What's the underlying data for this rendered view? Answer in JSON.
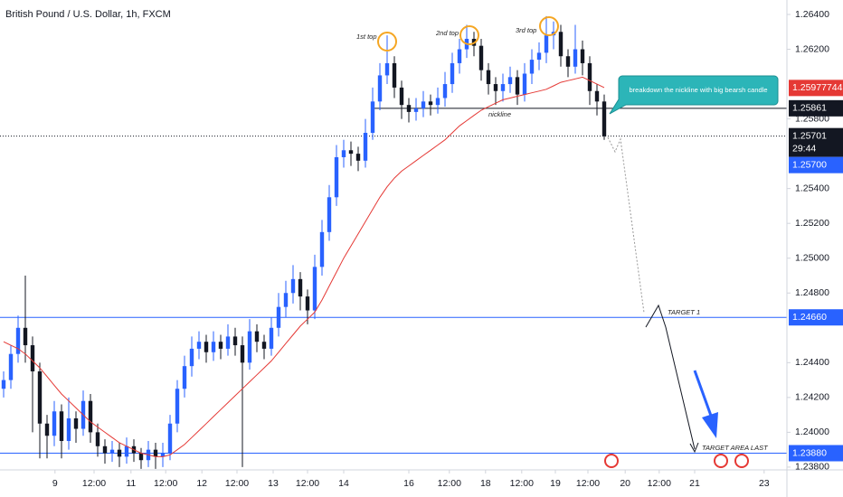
{
  "chart_data": {
    "type": "candlestick",
    "title": "British Pound / U.S. Dollar, 1h, FXCM",
    "colors": {
      "up": "#2962ff",
      "down": "#131722"
    },
    "open": [
      1.2425,
      1.243,
      1.2445,
      1.246,
      1.245,
      1.2435,
      1.2405,
      1.2398,
      1.2412,
      1.2395,
      1.2408,
      1.2402,
      1.2418,
      1.24,
      1.2392,
      1.2388,
      1.239,
      1.2386,
      1.2392,
      1.2388,
      1.2384,
      1.239,
      1.2386,
      1.2388,
      1.2405,
      1.2425,
      1.2438,
      1.2448,
      1.2452,
      1.2446,
      1.2452,
      1.2448,
      1.2455,
      1.245,
      1.244,
      1.2458,
      1.2452,
      1.2448,
      1.246,
      1.2472,
      1.248,
      1.2488,
      1.2478,
      1.247,
      1.2495,
      1.2515,
      1.2535,
      1.2558,
      1.2562,
      1.256,
      1.2556,
      1.2572,
      1.259,
      1.2605,
      1.2612,
      1.2598,
      1.2588,
      1.2584,
      1.2586,
      1.259,
      1.2588,
      1.2592,
      1.26,
      1.2612,
      1.262,
      1.2626,
      1.2622,
      1.2608,
      1.26,
      1.2596,
      1.26,
      1.2604,
      1.2594,
      1.2606,
      1.2614,
      1.2618,
      1.2628,
      1.263,
      1.2616,
      1.261,
      1.262,
      1.2612,
      1.2596,
      1.259
    ],
    "high": [
      1.2435,
      1.245,
      1.2467,
      1.249,
      1.2455,
      1.244,
      1.241,
      1.2418,
      1.2416,
      1.242,
      1.2412,
      1.2424,
      1.2422,
      1.2405,
      1.2396,
      1.2395,
      1.2394,
      1.2397,
      1.2396,
      1.2391,
      1.2395,
      1.2394,
      1.2394,
      1.241,
      1.243,
      1.2444,
      1.2455,
      1.2458,
      1.2456,
      1.2458,
      1.2456,
      1.2462,
      1.246,
      1.2455,
      1.2465,
      1.2462,
      1.2456,
      1.2466,
      1.248,
      1.2487,
      1.2496,
      1.2492,
      1.2482,
      1.2502,
      1.2522,
      1.2542,
      1.2565,
      1.2568,
      1.2567,
      1.2564,
      1.258,
      1.2598,
      1.2612,
      1.2628,
      1.2616,
      1.2602,
      1.2592,
      1.2592,
      1.2596,
      1.2594,
      1.2598,
      1.2607,
      1.2618,
      1.2626,
      1.2634,
      1.263,
      1.2626,
      1.2612,
      1.2604,
      1.2606,
      1.261,
      1.2608,
      1.2612,
      1.262,
      1.2624,
      1.2639,
      1.2636,
      1.2634,
      1.262,
      1.2634,
      1.2625,
      1.2616,
      1.26,
      1.2594
    ],
    "low": [
      1.242,
      1.2425,
      1.244,
      1.244,
      1.24,
      1.2385,
      1.2385,
      1.2392,
      1.2385,
      1.239,
      1.2394,
      1.2398,
      1.2394,
      1.2386,
      1.2382,
      1.2383,
      1.238,
      1.2382,
      1.2383,
      1.2379,
      1.238,
      1.2379,
      1.238,
      1.2384,
      1.24,
      1.242,
      1.2432,
      1.2442,
      1.244,
      1.2441,
      1.2442,
      1.2444,
      1.2444,
      1.238,
      1.2436,
      1.2446,
      1.2442,
      1.2444,
      1.2455,
      1.2466,
      1.2474,
      1.247,
      1.2462,
      1.2465,
      1.249,
      1.251,
      1.253,
      1.2552,
      1.2553,
      1.255,
      1.2552,
      1.2568,
      1.2585,
      1.26,
      1.2592,
      1.258,
      1.2578,
      1.2579,
      1.2581,
      1.2582,
      1.2583,
      1.2587,
      1.2595,
      1.2606,
      1.2615,
      1.2616,
      1.2602,
      1.2594,
      1.2588,
      1.259,
      1.2595,
      1.2588,
      1.259,
      1.26,
      1.2608,
      1.2612,
      1.262,
      1.261,
      1.2604,
      1.2606,
      1.2605,
      1.2588,
      1.2582,
      1.2568
    ],
    "close": [
      1.243,
      1.2445,
      1.246,
      1.245,
      1.2435,
      1.2405,
      1.2398,
      1.2412,
      1.2395,
      1.2408,
      1.2402,
      1.2418,
      1.24,
      1.2392,
      1.2388,
      1.239,
      1.2386,
      1.2392,
      1.2388,
      1.2384,
      1.239,
      1.2386,
      1.2388,
      1.2405,
      1.2425,
      1.2438,
      1.2448,
      1.2452,
      1.2446,
      1.2452,
      1.2448,
      1.2455,
      1.245,
      1.244,
      1.2458,
      1.2452,
      1.2448,
      1.246,
      1.2472,
      1.248,
      1.2488,
      1.2478,
      1.247,
      1.2495,
      1.2515,
      1.2535,
      1.2558,
      1.2562,
      1.256,
      1.2556,
      1.2572,
      1.259,
      1.2605,
      1.2612,
      1.2598,
      1.2588,
      1.2584,
      1.2586,
      1.259,
      1.2588,
      1.2592,
      1.26,
      1.2612,
      1.262,
      1.2626,
      1.2622,
      1.2608,
      1.26,
      1.2596,
      1.26,
      1.2604,
      1.2594,
      1.2606,
      1.2614,
      1.2618,
      1.2628,
      1.263,
      1.2616,
      1.261,
      1.262,
      1.2612,
      1.2596,
      1.259,
      1.257
    ],
    "ma": {
      "color": "#e53935",
      "values": [
        1.2452,
        1.245,
        1.2448,
        1.2445,
        1.2441,
        1.2437,
        1.2432,
        1.2427,
        1.2422,
        1.2418,
        1.2414,
        1.241,
        1.2406,
        1.2403,
        1.24,
        1.2397,
        1.2394,
        1.2392,
        1.239,
        1.2388,
        1.2387,
        1.2386,
        1.2386,
        1.2387,
        1.239,
        1.2393,
        1.2397,
        1.2401,
        1.2405,
        1.2409,
        1.2413,
        1.2417,
        1.2421,
        1.2425,
        1.2429,
        1.2433,
        1.2437,
        1.2441,
        1.2446,
        1.2451,
        1.2456,
        1.2461,
        1.2465,
        1.2469,
        1.2476,
        1.2484,
        1.2492,
        1.25,
        1.2507,
        1.2514,
        1.2521,
        1.2528,
        1.2535,
        1.2541,
        1.2546,
        1.255,
        1.2553,
        1.2556,
        1.2559,
        1.2562,
        1.2565,
        1.2568,
        1.2572,
        1.2576,
        1.2579,
        1.2582,
        1.2585,
        1.2587,
        1.2589,
        1.2591,
        1.2592,
        1.2593,
        1.2594,
        1.2595,
        1.2596,
        1.2597,
        1.2599,
        1.2601,
        1.2602,
        1.2603,
        1.2604,
        1.2602,
        1.26,
        1.2598
      ],
      "badge": {
        "value": 1.25977744,
        "label": "1.25977744"
      }
    },
    "ylim": [
      1.23784,
      1.26483
    ],
    "yticks": [
      {
        "value": 1.264,
        "label": "1.26400"
      },
      {
        "value": 1.262,
        "label": "1.26200"
      },
      {
        "value": 1.258,
        "label": "1.25800"
      },
      {
        "value": 1.254,
        "label": "1.25400"
      },
      {
        "value": 1.252,
        "label": "1.25200"
      },
      {
        "value": 1.25,
        "label": "1.25000"
      },
      {
        "value": 1.248,
        "label": "1.24800"
      },
      {
        "value": 1.244,
        "label": "1.24400"
      },
      {
        "value": 1.242,
        "label": "1.24200"
      },
      {
        "value": 1.24,
        "label": "1.24000"
      },
      {
        "value": 1.238,
        "label": "1.23800"
      }
    ],
    "xlim": [
      -0.5,
      108.25
    ],
    "xticks": [
      {
        "value": 7.1,
        "label": "9"
      },
      {
        "value": 12.5,
        "label": "12:00"
      },
      {
        "value": 17.6,
        "label": "11"
      },
      {
        "value": 22.4,
        "label": "12:00"
      },
      {
        "value": 27.4,
        "label": "12"
      },
      {
        "value": 32.25,
        "label": "12:00"
      },
      {
        "value": 37.25,
        "label": "13"
      },
      {
        "value": 42,
        "label": "12:00"
      },
      {
        "value": 47,
        "label": "14"
      },
      {
        "value": 56,
        "label": "16"
      },
      {
        "value": 61.6,
        "label": "12:00"
      },
      {
        "value": 66.6,
        "label": "18"
      },
      {
        "value": 71.6,
        "label": "12:00"
      },
      {
        "value": 76.25,
        "label": "19"
      },
      {
        "value": 80.75,
        "label": "12:00"
      },
      {
        "value": 85.9,
        "label": "20"
      },
      {
        "value": 90.6,
        "label": "12:00"
      },
      {
        "value": 95.5,
        "label": "21"
      },
      {
        "value": 105.1,
        "label": "23"
      }
    ],
    "price_lines": [
      {
        "value": 1.25861,
        "label": "1.25861",
        "color": "#131722"
      },
      {
        "value": 1.2466,
        "label": "1.24660",
        "color": "#2962ff"
      },
      {
        "value": 1.2388,
        "label": "1.23880",
        "color": "#2962ff"
      }
    ],
    "last_price": {
      "value": 1.25701,
      "label": "1.25701",
      "countdown": "29:44",
      "bid_label": "1.25700"
    },
    "annotations": {
      "top1": "1st top",
      "top2": "2nd top",
      "top3": "3rd top",
      "neckline": "nickline",
      "callout": "breakdown the nickline with big bearsh candle",
      "target1": "TARGET 1",
      "target_last": "TARGET AREA LAST"
    }
  }
}
